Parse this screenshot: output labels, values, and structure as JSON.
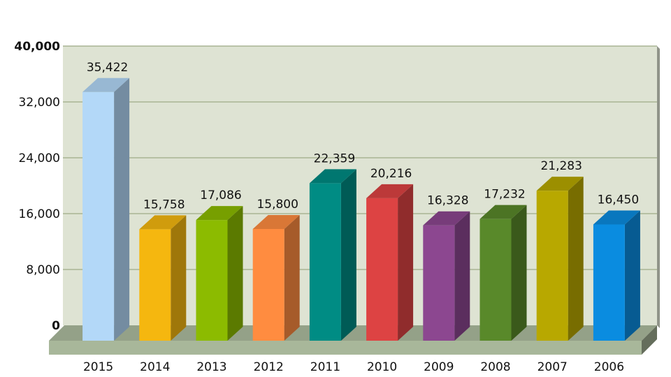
{
  "chart_data": {
    "type": "bar",
    "style": "3d",
    "categories": [
      "2015",
      "2014",
      "2013",
      "2012",
      "2011",
      "2010",
      "2009",
      "2008",
      "2007",
      "2006"
    ],
    "values": [
      35422,
      15758,
      17086,
      15800,
      22359,
      20216,
      16328,
      17232,
      21283,
      16450
    ],
    "value_labels": [
      "35,422",
      "15,758",
      "17,086",
      "15,800",
      "22,359",
      "20,216",
      "16,328",
      "17,232",
      "21,283",
      "16,450"
    ],
    "y_ticks": [
      0,
      8000,
      16000,
      24000,
      32000,
      40000
    ],
    "y_tick_labels": [
      "0",
      "8,000",
      "16,000",
      "24,000",
      "32,000",
      "40,000"
    ],
    "ylim": [
      0,
      40000
    ],
    "grid": true,
    "legend": "none",
    "bar_colors": [
      "#b3d8f8",
      "#f5b70f",
      "#8cbb00",
      "#ff8c40",
      "#008c84",
      "#dd4343",
      "#8c4790",
      "#59892a",
      "#b8a800",
      "#0a8ce0"
    ],
    "plot_background": "#dee3d3",
    "floor_color": "#a8b79a",
    "gridline_color": "#a8b493"
  }
}
